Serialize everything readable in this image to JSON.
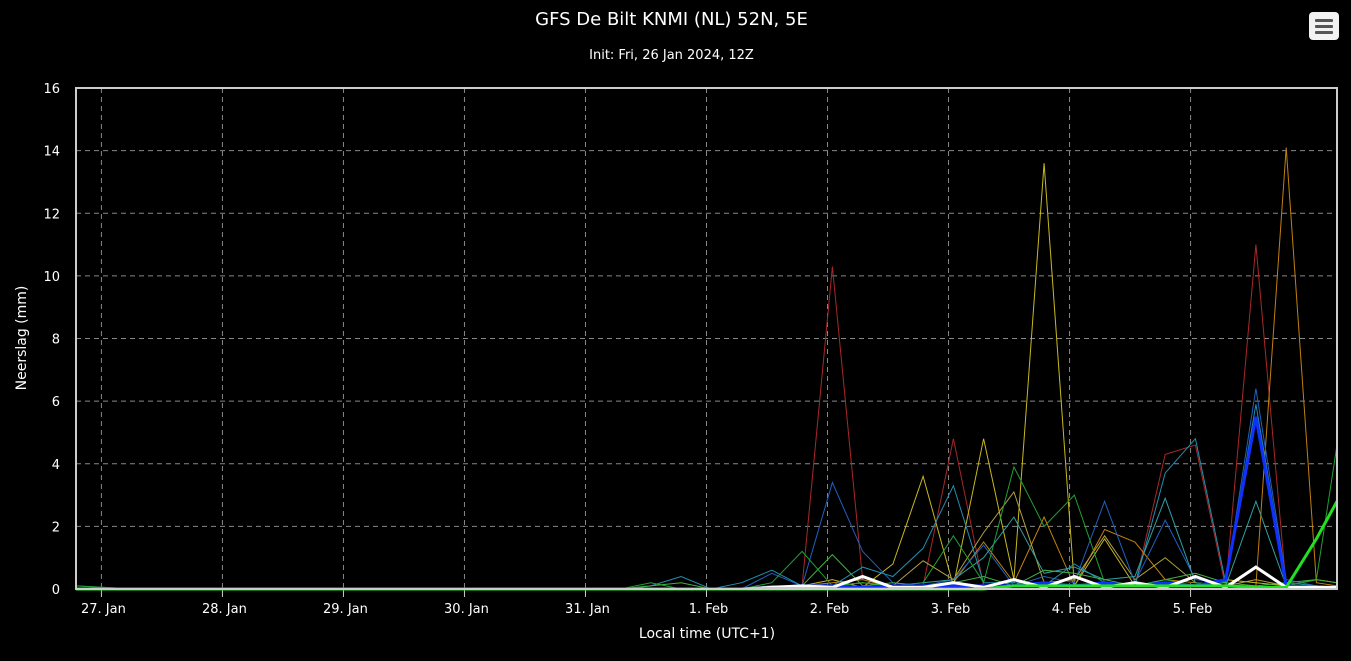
{
  "menu_icon": "hamburger-menu-icon",
  "chart_data": {
    "type": "line",
    "title": "GFS De Bilt KNMI (NL) 52N, 5E",
    "subtitle": "Init: Fri, 26 Jan 2024, 12Z",
    "xlabel": "Local time (UTC+1)",
    "ylabel": "Neerslag (mm)",
    "ylim": [
      0,
      16
    ],
    "yticks": [
      0,
      2,
      4,
      6,
      8,
      10,
      12,
      14,
      16
    ],
    "xlim": [
      -0.21,
      10.21
    ],
    "x_tick_labels": [
      "27. Jan",
      "28. Jan",
      "29. Jan",
      "30. Jan",
      "31. Jan",
      "1. Feb",
      "2. Feb",
      "3. Feb",
      "4. Feb",
      "5. Feb"
    ],
    "grid": true,
    "colors": {
      "background": "#000000",
      "plot_border": "#cccccc",
      "grid": "#888888",
      "text": "#ffffff"
    },
    "x": [
      -0.21,
      0.29,
      0.79,
      1.29,
      1.79,
      2.29,
      2.79,
      3.29,
      3.79,
      4.29,
      4.54,
      4.79,
      5.04,
      5.29,
      5.54,
      5.79,
      6.04,
      6.29,
      6.54,
      6.79,
      7.04,
      7.29,
      7.54,
      7.79,
      8.04,
      8.29,
      8.54,
      8.79,
      9.04,
      9.29,
      9.54,
      9.79,
      10.04,
      10.21
    ],
    "series": [
      {
        "color": "#a82828",
        "width": 1,
        "values": [
          0,
          0,
          0,
          0,
          0,
          0,
          0,
          0,
          0,
          0,
          0,
          0,
          0,
          0,
          0.1,
          0.1,
          10.3,
          0.3,
          0.05,
          0.1,
          4.8,
          0.1,
          0.3,
          0.1,
          0.1,
          0.2,
          0.1,
          4.3,
          4.6,
          0.05,
          11,
          0.05,
          0.1,
          0.05
        ]
      },
      {
        "color": "#c08010",
        "width": 1,
        "values": [
          0,
          0,
          0,
          0,
          0,
          0,
          0,
          0,
          0,
          0,
          0,
          0,
          0,
          0,
          0.05,
          0.1,
          0.2,
          0.3,
          0.05,
          0.1,
          0.2,
          1.5,
          0.2,
          2.3,
          0.1,
          1.9,
          1.5,
          0.3,
          0.2,
          0.1,
          0.1,
          14.1,
          0.2,
          0.1
        ]
      },
      {
        "color": "#c8b820",
        "width": 1,
        "values": [
          0,
          0,
          0,
          0,
          0,
          0,
          0,
          0,
          0,
          0,
          0,
          0,
          0,
          0,
          0.05,
          0.1,
          0.3,
          0.05,
          0.8,
          3.6,
          0.1,
          4.8,
          0.3,
          13.6,
          0.1,
          1.6,
          0.1,
          0.2,
          0.1,
          0.3,
          0.2,
          0.1,
          0.3,
          0.2
        ]
      },
      {
        "color": "#b0a040",
        "width": 1,
        "values": [
          0,
          0,
          0,
          0,
          0,
          0,
          0,
          0,
          0,
          0,
          0,
          0,
          0,
          0,
          0.05,
          0.1,
          0.1,
          0.2,
          0.1,
          0.9,
          0.3,
          1.8,
          3.1,
          0.2,
          0.3,
          1.7,
          0.3,
          1.0,
          0.2,
          0.1,
          0.3,
          0.1,
          0.1,
          0.05
        ]
      },
      {
        "color": "#2060c0",
        "width": 1,
        "values": [
          0,
          0,
          0,
          0,
          0,
          0,
          0,
          0,
          0,
          0,
          0,
          0,
          0,
          0,
          0.5,
          0.1,
          3.4,
          1.2,
          0.2,
          0.1,
          0.3,
          1.4,
          0.1,
          0.4,
          0.2,
          2.8,
          0.2,
          2.2,
          0.3,
          0.2,
          6.4,
          0.3,
          0.1,
          0.05
        ]
      },
      {
        "color": "#2090b0",
        "width": 1,
        "values": [
          0.1,
          0,
          0,
          0,
          0,
          0,
          0,
          0,
          0,
          0,
          0.1,
          0.4,
          0,
          0.2,
          0.6,
          0.1,
          0.1,
          0.7,
          0.4,
          1.3,
          3.3,
          0.2,
          0.2,
          0.1,
          0.8,
          0.2,
          0.1,
          3.7,
          4.8,
          0.2,
          5.9,
          0.2,
          0.1,
          0.05
        ]
      },
      {
        "color": "#30a0a0",
        "width": 1,
        "values": [
          0,
          0,
          0,
          0,
          0,
          0,
          0,
          0,
          0,
          0,
          0,
          0,
          0,
          0,
          0.1,
          0.05,
          0.1,
          0.2,
          0.1,
          0.2,
          0.3,
          1.0,
          2.3,
          0.5,
          0.7,
          0.3,
          0.4,
          2.9,
          0.2,
          0.1,
          2.8,
          0.1,
          0.1,
          0.05
        ]
      },
      {
        "color": "#20a030",
        "width": 1,
        "values": [
          0.1,
          0,
          0,
          0,
          0,
          0,
          0,
          0,
          0,
          0,
          0.2,
          0,
          0,
          0,
          0.2,
          1.2,
          0.1,
          0.2,
          0.1,
          0.2,
          1.7,
          0.2,
          3.9,
          2.0,
          3.0,
          0.2,
          0.1,
          0.3,
          0.1,
          0.2,
          5.4,
          0.1,
          0.3,
          4.6
        ]
      },
      {
        "color": "#40b040",
        "width": 1,
        "values": [
          0,
          0,
          0,
          0,
          0,
          0,
          0,
          0,
          0,
          0,
          0.1,
          0.2,
          0,
          0,
          0.1,
          0.1,
          1.1,
          0.1,
          0.2,
          0.1,
          0.2,
          0.4,
          0.1,
          0.6,
          0.5,
          0.3,
          0.1,
          0.3,
          0.5,
          0.2,
          0.1,
          0.2,
          0.3,
          0.2
        ]
      },
      {
        "color": "#1030ff",
        "width": 3,
        "values": [
          0,
          0,
          0,
          0,
          0,
          0,
          0,
          0,
          0,
          0,
          0,
          0,
          0,
          0,
          0.05,
          0.1,
          0.1,
          0.05,
          0.1,
          0.1,
          0.1,
          0.1,
          0.1,
          0.2,
          0.1,
          0.2,
          0.1,
          0.2,
          0.1,
          0.3,
          5.5,
          0.1,
          0.05,
          0.05
        ]
      },
      {
        "color": "#ffffff",
        "width": 3,
        "values": [
          0,
          0,
          0,
          0,
          0,
          0,
          0,
          0,
          0,
          0,
          0,
          0,
          0,
          0,
          0.05,
          0.1,
          0.05,
          0.4,
          0.05,
          0.05,
          0.2,
          0.05,
          0.3,
          0.05,
          0.4,
          0.05,
          0.2,
          0.05,
          0.4,
          0.05,
          0.7,
          0.05,
          0.05,
          0.05
        ]
      },
      {
        "color": "#20e020",
        "width": 3,
        "values": [
          0,
          0,
          0,
          0,
          0,
          0,
          0,
          0,
          0,
          0,
          0,
          0,
          0,
          0,
          0,
          0,
          0,
          0,
          0,
          0,
          0,
          0,
          0.1,
          0.1,
          0.1,
          0.1,
          0.1,
          0.1,
          0.1,
          0.1,
          0.05,
          0.05,
          1.6,
          2.8
        ]
      }
    ]
  }
}
